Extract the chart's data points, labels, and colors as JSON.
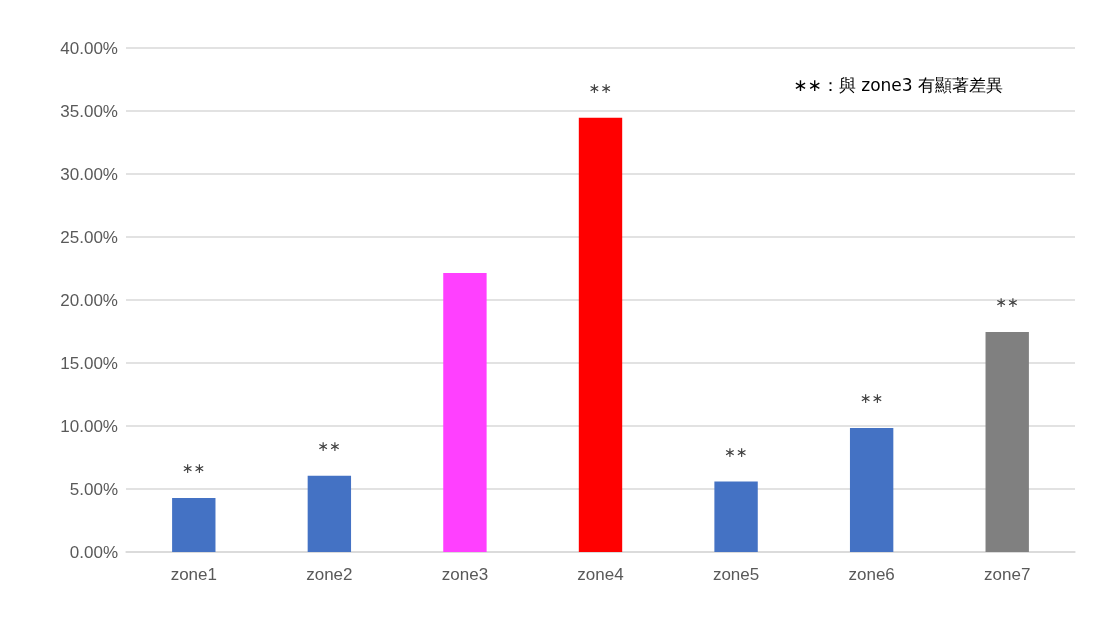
{
  "chart_data": {
    "type": "bar",
    "categories": [
      "zone1",
      "zone2",
      "zone3",
      "zone4",
      "zone5",
      "zone6",
      "zone7"
    ],
    "values": [
      4.28,
      6.05,
      22.15,
      34.46,
      5.59,
      9.85,
      17.46
    ],
    "colors": [
      "#4472c4",
      "#4472c4",
      "#ff40ff",
      "#ff0000",
      "#4472c4",
      "#4472c4",
      "#808080"
    ],
    "ylim": [
      0,
      40
    ],
    "yticks": [
      {
        "value": 0,
        "label": "0.00%"
      },
      {
        "value": 5,
        "label": "5.00%"
      },
      {
        "value": 10,
        "label": "10.00%"
      },
      {
        "value": 15,
        "label": "15.00%"
      },
      {
        "value": 20,
        "label": "20.00%"
      },
      {
        "value": 25,
        "label": "25.00%"
      },
      {
        "value": 30,
        "label": "30.00%"
      },
      {
        "value": 35,
        "label": "35.00%"
      },
      {
        "value": 40,
        "label": "40.00%"
      }
    ],
    "grid": "y",
    "annotations": [
      {
        "text": "∗∗",
        "x": "zone1",
        "y": 4.28
      },
      {
        "text": "∗∗",
        "x": "zone2",
        "y": 6.05
      },
      {
        "text": "∗∗",
        "x": "zone4",
        "y": 34.46
      },
      {
        "text": "∗∗",
        "x": "zone5",
        "y": 5.59
      },
      {
        "text": "∗∗",
        "x": "zone6",
        "y": 9.85
      },
      {
        "text": "∗∗",
        "x": "zone7",
        "y": 17.46
      },
      "∗∗：與 zone3 有顯著差異"
    ]
  }
}
